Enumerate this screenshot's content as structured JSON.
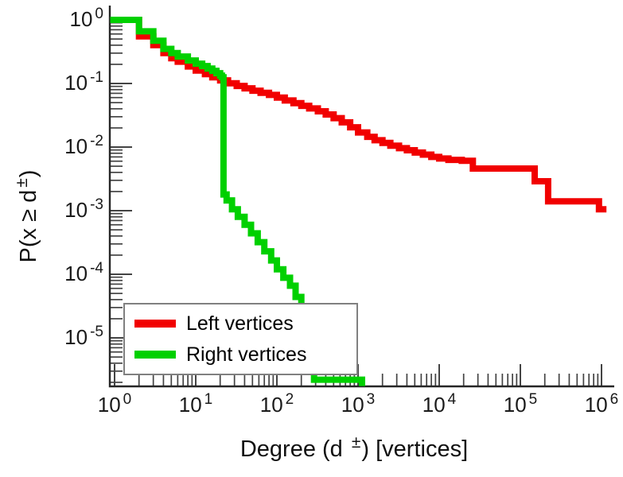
{
  "chart_data": {
    "type": "line",
    "subtype": "log-log-ccdf-staircase",
    "title": "",
    "xlabel": {
      "prefix": "Degree (d ",
      "sup": "±",
      "suffix": ") [vertices]"
    },
    "ylabel": {
      "prefix": "P(x ≥ d",
      "sup": "±",
      "suffix": ")"
    },
    "x_scale": "log",
    "y_scale": "log",
    "xlim": [
      0.9,
      1450000
    ],
    "ylim": [
      1.7e-06,
      1.6
    ],
    "grid": false,
    "axis_color": "#262626",
    "tick_color": "#444444",
    "text_color": "#1a1a1a",
    "x_ticks": [
      {
        "base": "10",
        "exp": "0"
      },
      {
        "base": "10",
        "exp": "1"
      },
      {
        "base": "10",
        "exp": "2"
      },
      {
        "base": "10",
        "exp": "3"
      },
      {
        "base": "10",
        "exp": "4"
      },
      {
        "base": "10",
        "exp": "5"
      },
      {
        "base": "10",
        "exp": "6"
      }
    ],
    "y_ticks": [
      {
        "base": "10",
        "exp": "0"
      },
      {
        "base": "10",
        "exp": "-1"
      },
      {
        "base": "10",
        "exp": "-2"
      },
      {
        "base": "10",
        "exp": "-3"
      },
      {
        "base": "10",
        "exp": "-4"
      },
      {
        "base": "10",
        "exp": "-5"
      }
    ],
    "legend": {
      "position": "bottom-left",
      "background": "#ffffff",
      "border_color": "#808080",
      "entries": [
        {
          "label": "Left vertices",
          "color": "#f10000"
        },
        {
          "label": "Right vertices",
          "color": "#00d000"
        }
      ]
    },
    "series": [
      {
        "name": "Left vertices",
        "slug": "left-vertices",
        "color": "#f10000",
        "points": [
          [
            1,
            1.0
          ],
          [
            2,
            0.55
          ],
          [
            3,
            0.4
          ],
          [
            4,
            0.3
          ],
          [
            5,
            0.25
          ],
          [
            6,
            0.22
          ],
          [
            8,
            0.185
          ],
          [
            10,
            0.16
          ],
          [
            13,
            0.14
          ],
          [
            16,
            0.125
          ],
          [
            20,
            0.112
          ],
          [
            25,
            0.101
          ],
          [
            32,
            0.0915
          ],
          [
            40,
            0.084
          ],
          [
            50,
            0.077
          ],
          [
            63,
            0.0715
          ],
          [
            80,
            0.066
          ],
          [
            100,
            0.06
          ],
          [
            125,
            0.054
          ],
          [
            160,
            0.049
          ],
          [
            200,
            0.0445
          ],
          [
            250,
            0.0405
          ],
          [
            320,
            0.0365
          ],
          [
            400,
            0.0325
          ],
          [
            500,
            0.0285
          ],
          [
            630,
            0.0245
          ],
          [
            800,
            0.0205
          ],
          [
            1000,
            0.017
          ],
          [
            1300,
            0.0145
          ],
          [
            1600,
            0.0128
          ],
          [
            2000,
            0.0116
          ],
          [
            2500,
            0.0105
          ],
          [
            3200,
            0.0096
          ],
          [
            4000,
            0.0089
          ],
          [
            5000,
            0.0082
          ],
          [
            6300,
            0.0076
          ],
          [
            8000,
            0.007
          ],
          [
            10000,
            0.0066
          ],
          [
            13000,
            0.0063
          ],
          [
            19000,
            0.0061
          ],
          [
            26000,
            0.0046
          ],
          [
            150000,
            0.0029
          ],
          [
            220000,
            0.0014
          ],
          [
            930000,
            0.00105
          ],
          [
            1150000,
            0.00105
          ]
        ]
      },
      {
        "name": "Right vertices",
        "slug": "right-vertices",
        "color": "#00d000",
        "points": [
          [
            1,
            1.0
          ],
          [
            2,
            0.66
          ],
          [
            3,
            0.47
          ],
          [
            4,
            0.35
          ],
          [
            5,
            0.3
          ],
          [
            6,
            0.265
          ],
          [
            8,
            0.23
          ],
          [
            10,
            0.205
          ],
          [
            12,
            0.188
          ],
          [
            14,
            0.172
          ],
          [
            16,
            0.158
          ],
          [
            18,
            0.145
          ],
          [
            20,
            0.133
          ],
          [
            21,
            0.125
          ],
          [
            22,
            0.0018
          ],
          [
            24,
            0.00145
          ],
          [
            28,
            0.00105
          ],
          [
            33,
            0.0008
          ],
          [
            40,
            0.0006
          ],
          [
            48,
            0.00044
          ],
          [
            58,
            0.00032
          ],
          [
            70,
            0.00023
          ],
          [
            85,
            0.000165
          ],
          [
            100,
            0.00012
          ],
          [
            120,
            8.8e-05
          ],
          [
            145,
            6.6e-05
          ],
          [
            170,
            4.4e-05
          ],
          [
            200,
            2.9e-05
          ],
          [
            235,
            1.7e-05
          ],
          [
            265,
            8e-06
          ],
          [
            287,
            2.2e-06
          ],
          [
            1120,
            1.75e-06
          ]
        ]
      }
    ]
  }
}
